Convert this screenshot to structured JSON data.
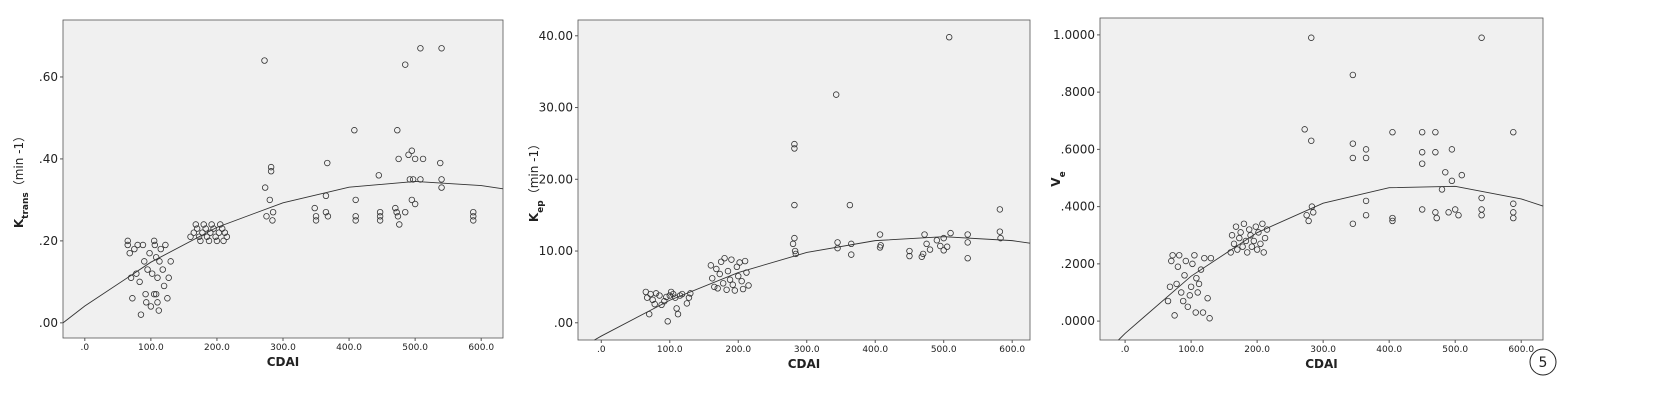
{
  "chart_data": [
    {
      "type": "scatter",
      "xlabel": "CDAI",
      "ylabel": [
        "K",
        "trans",
        "（min -1）"
      ],
      "xlim": [
        -33,
        633
      ],
      "ylim": [
        -0.037,
        0.739
      ],
      "xticks": [
        {
          "value": 0,
          "label": ".0"
        },
        {
          "value": 100,
          "label": "100.0"
        },
        {
          "value": 200,
          "label": "200.0"
        },
        {
          "value": 300,
          "label": "300.0"
        },
        {
          "value": 400,
          "label": "400.0"
        },
        {
          "value": 500,
          "label": "500.0"
        },
        {
          "value": 600,
          "label": "600.0"
        }
      ],
      "yticks": [
        {
          "value": 0,
          "label": ".00"
        },
        {
          "value": 0.2,
          "label": ".20"
        },
        {
          "value": 0.4,
          "label": ".40"
        },
        {
          "value": 0.6,
          "label": ".60"
        }
      ],
      "x": [
        65,
        65,
        68,
        70,
        72,
        75,
        78,
        80,
        83,
        85,
        88,
        90,
        92,
        93,
        95,
        98,
        100,
        102,
        105,
        106,
        108,
        108,
        110,
        110,
        112,
        113,
        118,
        120,
        122,
        125,
        127,
        130,
        105,
        115,
        160,
        165,
        168,
        170,
        173,
        175,
        178,
        180,
        183,
        185,
        188,
        190,
        192,
        195,
        198,
        200,
        203,
        205,
        208,
        210,
        212,
        215,
        272,
        273,
        275,
        280,
        282,
        282,
        284,
        285,
        348,
        350,
        350,
        365,
        367,
        365,
        368,
        408,
        410,
        410,
        410,
        445,
        447,
        447,
        447,
        470,
        472,
        474,
        476,
        473,
        475,
        485,
        485,
        490,
        492,
        495,
        495,
        497,
        500,
        500,
        508,
        508,
        512,
        540,
        538,
        540,
        540,
        588,
        588,
        588
      ],
      "y": [
        0.2,
        0.19,
        0.17,
        0.11,
        0.06,
        0.18,
        0.12,
        0.19,
        0.1,
        0.02,
        0.19,
        0.15,
        0.07,
        0.05,
        0.13,
        0.17,
        0.04,
        0.12,
        0.2,
        0.19,
        0.16,
        0.07,
        0.11,
        0.05,
        0.03,
        0.15,
        0.13,
        0.09,
        0.19,
        0.06,
        0.11,
        0.15,
        0.07,
        0.18,
        0.21,
        0.22,
        0.24,
        0.23,
        0.21,
        0.2,
        0.22,
        0.24,
        0.23,
        0.21,
        0.2,
        0.22,
        0.24,
        0.23,
        0.21,
        0.2,
        0.22,
        0.24,
        0.23,
        0.2,
        0.22,
        0.21,
        0.64,
        0.33,
        0.26,
        0.3,
        0.38,
        0.37,
        0.25,
        0.27,
        0.28,
        0.25,
        0.26,
        0.31,
        0.39,
        0.27,
        0.26,
        0.47,
        0.3,
        0.26,
        0.25,
        0.36,
        0.27,
        0.26,
        0.25,
        0.28,
        0.27,
        0.26,
        0.24,
        0.47,
        0.4,
        0.63,
        0.27,
        0.41,
        0.35,
        0.42,
        0.3,
        0.35,
        0.4,
        0.29,
        0.67,
        0.35,
        0.4,
        0.67,
        0.39,
        0.35,
        0.33,
        0.27,
        0.26,
        0.25
      ],
      "fit": {
        "x": [
          -33,
          0,
          100,
          200,
          300,
          400,
          500,
          600,
          633
        ],
        "values": [
          0.0,
          0.041,
          0.148,
          0.233,
          0.293,
          0.331,
          0.345,
          0.335,
          0.327
        ]
      }
    },
    {
      "type": "scatter",
      "xlabel": "CDAI",
      "ylabel": [
        "K",
        "ep",
        "（min -1）"
      ],
      "xlim": [
        -34,
        626
      ],
      "ylim": [
        -2.4,
        42.2
      ],
      "xticks": [
        {
          "value": 0,
          "label": ".0"
        },
        {
          "value": 100,
          "label": "100.0"
        },
        {
          "value": 200,
          "label": "200.0"
        },
        {
          "value": 300,
          "label": "300.0"
        },
        {
          "value": 400,
          "label": "400.0"
        },
        {
          "value": 500,
          "label": "500.0"
        },
        {
          "value": 600,
          "label": "600.0"
        }
      ],
      "yticks": [
        {
          "value": 0,
          "label": ".00"
        },
        {
          "value": 10,
          "label": "10.00"
        },
        {
          "value": 20,
          "label": "20.00"
        },
        {
          "value": 30,
          "label": "30.00"
        },
        {
          "value": 40,
          "label": "40.00"
        }
      ],
      "x": [
        65,
        67,
        70,
        72,
        75,
        78,
        80,
        85,
        88,
        92,
        95,
        97,
        100,
        102,
        105,
        108,
        110,
        112,
        115,
        118,
        125,
        128,
        130,
        160,
        162,
        165,
        168,
        170,
        173,
        175,
        178,
        180,
        183,
        185,
        188,
        190,
        192,
        195,
        198,
        200,
        202,
        205,
        207,
        210,
        212,
        215,
        282,
        282,
        282,
        282,
        280,
        283,
        284,
        343,
        345,
        345,
        363,
        365,
        365,
        407,
        407,
        408,
        450,
        450,
        468,
        470,
        472,
        475,
        480,
        490,
        495,
        500,
        500,
        508,
        505,
        510,
        535,
        535,
        535,
        582,
        582,
        583
      ],
      "y": [
        4.3,
        3.5,
        1.2,
        4.0,
        3.2,
        2.6,
        4.1,
        3.8,
        2.5,
        3.0,
        3.6,
        0.2,
        3.8,
        4.3,
        4.0,
        3.5,
        2.0,
        1.2,
        3.8,
        4.0,
        2.7,
        3.5,
        4.1,
        8.0,
        6.2,
        5.0,
        7.5,
        4.8,
        6.8,
        8.5,
        5.5,
        9.0,
        4.6,
        7.2,
        6.0,
        8.8,
        5.3,
        4.5,
        7.8,
        6.5,
        8.4,
        5.8,
        4.7,
        8.6,
        7.0,
        5.2,
        24.9,
        24.3,
        16.4,
        11.8,
        11.0,
        10.0,
        9.6,
        31.8,
        11.2,
        10.4,
        16.4,
        11.0,
        9.5,
        12.3,
        10.5,
        10.8,
        10.0,
        9.3,
        9.2,
        9.6,
        12.3,
        11.0,
        10.2,
        11.5,
        10.7,
        11.8,
        10.1,
        39.8,
        10.6,
        12.5,
        12.3,
        11.2,
        9.0,
        15.8,
        12.7,
        11.8
      ],
      "fit": {
        "x": [
          -10,
          0,
          100,
          200,
          300,
          400,
          500,
          600,
          626
        ],
        "values": [
          -2.4,
          -1.85,
          3.14,
          7.0,
          9.8,
          11.45,
          12,
          11.45,
          11.1
        ]
      }
    },
    {
      "type": "scatter",
      "xlabel": "CDAI",
      "ylabel": [
        "V",
        "e",
        ""
      ],
      "xlim": [
        -38,
        633
      ],
      "ylim": [
        -0.066,
        1.059
      ],
      "xticks": [
        {
          "value": 0,
          "label": ".0"
        },
        {
          "value": 100,
          "label": "100.0"
        },
        {
          "value": 200,
          "label": "200.0"
        },
        {
          "value": 300,
          "label": "300.0"
        },
        {
          "value": 400,
          "label": "400.0"
        },
        {
          "value": 500,
          "label": "500.0"
        },
        {
          "value": 600,
          "label": "600.0"
        }
      ],
      "yticks": [
        {
          "value": 0,
          "label": ".0000"
        },
        {
          "value": 0.2,
          "label": ".2000"
        },
        {
          "value": 0.4,
          "label": ".4000"
        },
        {
          "value": 0.6,
          "label": ".6000"
        },
        {
          "value": 0.8,
          "label": ".8000"
        },
        {
          "value": 1,
          "label": "1.0000"
        }
      ],
      "x": [
        65,
        68,
        70,
        72,
        75,
        78,
        80,
        82,
        85,
        88,
        90,
        92,
        95,
        98,
        100,
        102,
        105,
        107,
        108,
        110,
        112,
        115,
        118,
        120,
        125,
        128,
        130,
        160,
        162,
        165,
        168,
        170,
        173,
        175,
        178,
        180,
        183,
        185,
        188,
        190,
        192,
        195,
        198,
        200,
        202,
        205,
        208,
        210,
        212,
        215,
        272,
        275,
        278,
        282,
        282,
        283,
        285,
        345,
        345,
        345,
        345,
        365,
        365,
        365,
        365,
        405,
        405,
        405,
        450,
        450,
        450,
        450,
        470,
        470,
        470,
        472,
        480,
        485,
        490,
        495,
        495,
        500,
        505,
        510,
        540,
        540,
        540,
        540,
        588,
        588,
        588,
        588
      ],
      "y": [
        0.07,
        0.12,
        0.21,
        0.23,
        0.02,
        0.13,
        0.19,
        0.23,
        0.1,
        0.07,
        0.16,
        0.21,
        0.05,
        0.09,
        0.12,
        0.2,
        0.23,
        0.03,
        0.15,
        0.1,
        0.13,
        0.18,
        0.03,
        0.22,
        0.08,
        0.01,
        0.22,
        0.24,
        0.3,
        0.27,
        0.33,
        0.25,
        0.29,
        0.31,
        0.26,
        0.34,
        0.28,
        0.24,
        0.32,
        0.3,
        0.26,
        0.28,
        0.33,
        0.25,
        0.31,
        0.27,
        0.34,
        0.24,
        0.29,
        0.32,
        0.67,
        0.37,
        0.35,
        0.99,
        0.63,
        0.4,
        0.38,
        0.86,
        0.62,
        0.57,
        0.34,
        0.6,
        0.57,
        0.42,
        0.37,
        0.66,
        0.36,
        0.35,
        0.66,
        0.59,
        0.55,
        0.39,
        0.66,
        0.59,
        0.38,
        0.36,
        0.46,
        0.52,
        0.38,
        0.6,
        0.49,
        0.39,
        0.37,
        0.51,
        0.99,
        0.43,
        0.39,
        0.37,
        0.66,
        0.41,
        0.38,
        0.36
      ],
      "fit": {
        "x": [
          -10,
          0,
          100,
          200,
          300,
          400,
          500,
          600,
          633
        ],
        "values": [
          -0.066,
          -0.043,
          0.157,
          0.309,
          0.412,
          0.466,
          0.471,
          0.427,
          0.402
        ]
      }
    }
  ],
  "page_marker": "5"
}
